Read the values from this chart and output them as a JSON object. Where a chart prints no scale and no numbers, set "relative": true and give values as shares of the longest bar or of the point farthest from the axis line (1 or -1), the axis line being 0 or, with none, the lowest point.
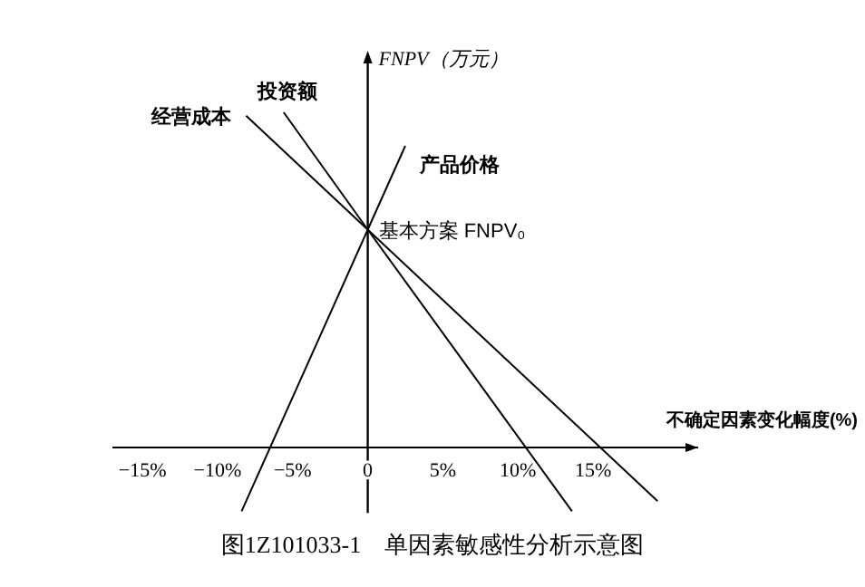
{
  "chart_data": {
    "type": "line",
    "relative": true,
    "title": "图1Z101033-1　单因素敏感性分析示意图",
    "xlabel": "不确定因素变化幅度(%)",
    "ylabel": "FNPV（万元）",
    "xlim": [
      -17,
      22
    ],
    "xticks": [
      {
        "value": -15,
        "label": "−15%"
      },
      {
        "value": -10,
        "label": "−10%"
      },
      {
        "value": -5,
        "label": "−5%"
      },
      0,
      {
        "value": 5,
        "label": "5%"
      },
      {
        "value": 10,
        "label": "10%"
      },
      {
        "value": 15,
        "label": "15%"
      }
    ],
    "series": [
      {
        "name": "经营成本",
        "color": "#000000",
        "x": [
          -8.1,
          0,
          19.3
        ],
        "values": [
          0.99,
          0.65,
          -0.16
        ]
      },
      {
        "name": "投资额",
        "color": "#000000",
        "x": [
          -5.6,
          0,
          13.6
        ],
        "values": [
          1,
          0.65,
          -0.19
        ]
      },
      {
        "name": "产品价格",
        "color": "#000000",
        "x": [
          2.5,
          0,
          -8.4
        ],
        "values": [
          0.9,
          0.65,
          -0.19
        ]
      }
    ],
    "annotations": [
      {
        "text": "基本方案 FNPV₀",
        "x": 0,
        "y": 0.65
      }
    ],
    "marker": "none",
    "line_style": "solid"
  }
}
